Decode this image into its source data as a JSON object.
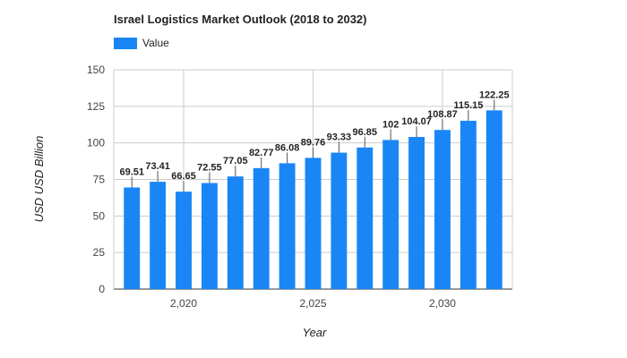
{
  "chart_data": {
    "type": "bar",
    "title": "Israel Logistics Market Outlook (2018 to 2032)",
    "xlabel": "Year",
    "ylabel": "USD USD Billion",
    "series": [
      {
        "name": "Value",
        "color": "#1a86f6",
        "x": [
          2018,
          2019,
          2020,
          2021,
          2022,
          2023,
          2024,
          2025,
          2026,
          2027,
          2028,
          2029,
          2030,
          2031,
          2032
        ],
        "values": [
          69.51,
          73.41,
          66.65,
          72.55,
          77.05,
          82.77,
          86.08,
          89.76,
          93.33,
          96.85,
          102,
          104.07,
          108.87,
          115.15,
          122.25
        ]
      }
    ],
    "data_labels": [
      "69.51",
      "73.41",
      "66.65",
      "72.55",
      "77.05",
      "82.77",
      "86.08",
      "89.76",
      "93.33",
      "96.85",
      "102",
      "104.07",
      "108.87",
      "115.15",
      "122.25"
    ],
    "ylim": [
      0,
      150
    ],
    "yticks": [
      0,
      25,
      50,
      75,
      100,
      125,
      150
    ],
    "xticks": [
      2020,
      2025,
      2030
    ],
    "xtick_labels": [
      "2,020",
      "2,025",
      "2,030"
    ],
    "xlim": [
      2017.3,
      2032.7
    ],
    "grid": true,
    "legend_position": "top-left"
  }
}
